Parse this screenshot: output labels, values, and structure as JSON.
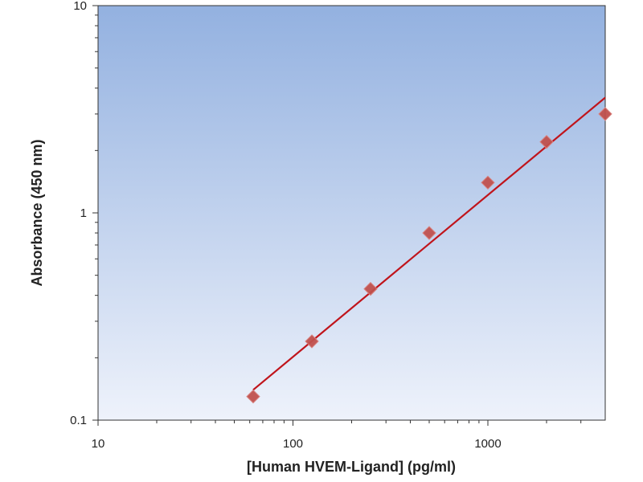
{
  "chart_data": {
    "type": "scatter",
    "title": "",
    "xlabel": "[Human HVEM-Ligand] (pg/ml)",
    "ylabel": "Absorbance (450 nm)",
    "x_scale": "log",
    "y_scale": "log",
    "xlim": [
      10,
      4000
    ],
    "ylim": [
      0.1,
      10
    ],
    "x_ticks": [
      10,
      100,
      1000
    ],
    "x_tick_labels": [
      "10",
      "100",
      "1000"
    ],
    "y_ticks": [
      0.1,
      1,
      10
    ],
    "y_tick_labels": [
      "0.1",
      "1",
      "10"
    ],
    "grid": false,
    "legend": "none",
    "series": [
      {
        "kind": "points",
        "marker": "diamond",
        "x": [
          62.5,
          125,
          250,
          500,
          1000,
          2000,
          4000
        ],
        "y": [
          0.13,
          0.24,
          0.43,
          0.8,
          1.4,
          2.2,
          3.0
        ]
      },
      {
        "kind": "fit-line",
        "x": [
          62.5,
          4000
        ],
        "y": [
          0.14,
          3.6
        ]
      }
    ],
    "colors": {
      "plot_bg_top": "#93b1e0",
      "plot_bg_bottom": "#eef2fb",
      "marker_fill": "#c0504d",
      "marker_stroke": "#d9827f",
      "line": "#c0141b",
      "axis": "#333333"
    }
  }
}
